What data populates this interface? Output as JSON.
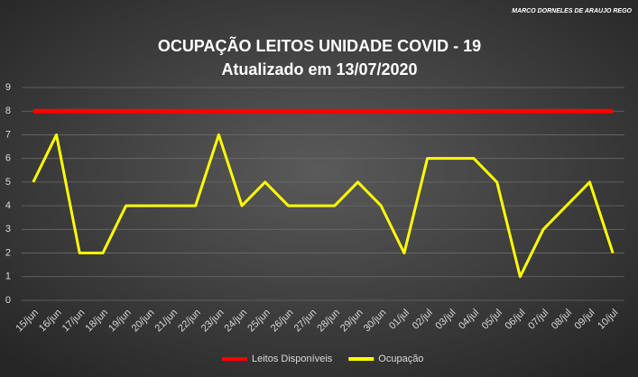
{
  "chart_data": {
    "type": "line",
    "title": "OCUPAÇÃO  LEITOS  UNIDADE  COVID  -  19",
    "subtitle": "Atualizado  em 13/07/2020",
    "credit": "MARCO DORNELES DE ARAUJO REGO",
    "categories": [
      "15/jun",
      "16/jun",
      "17/jun",
      "18/jun",
      "19/jun",
      "20/jun",
      "21/jun",
      "22/jun",
      "23/jun",
      "24/jun",
      "25/jun",
      "26/jun",
      "27/jun",
      "28/jun",
      "29/jun",
      "30/jun",
      "01/jul",
      "02/jul",
      "03/jul",
      "04/jul",
      "05/jul",
      "06/jul",
      "07/jul",
      "08/jul",
      "09/jul",
      "10/jul"
    ],
    "series": [
      {
        "name": "Leitos Disponíveis",
        "color": "#ff0000",
        "values": [
          8,
          8,
          8,
          8,
          8,
          8,
          8,
          8,
          8,
          8,
          8,
          8,
          8,
          8,
          8,
          8,
          8,
          8,
          8,
          8,
          8,
          8,
          8,
          8,
          8,
          8
        ]
      },
      {
        "name": "Ocupação",
        "color": "#ffff00",
        "values": [
          5,
          7,
          2,
          2,
          4,
          4,
          4,
          4,
          7,
          4,
          5,
          4,
          4,
          4,
          5,
          4,
          2,
          6,
          6,
          6,
          5,
          1,
          3,
          4,
          5,
          2
        ]
      }
    ],
    "ylim": [
      0,
      9
    ],
    "yticks": [
      0,
      1,
      2,
      3,
      4,
      5,
      6,
      7,
      8,
      9
    ],
    "grid": true,
    "legend": "bottom"
  }
}
